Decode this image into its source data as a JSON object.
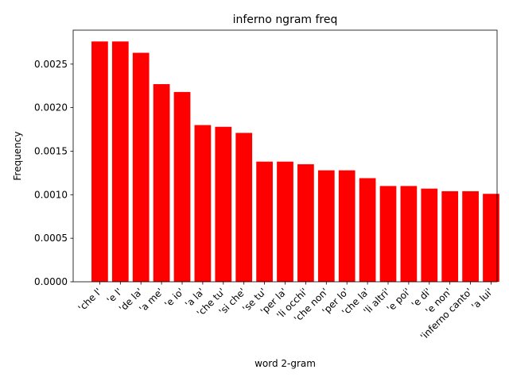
{
  "chart_data": {
    "type": "bar",
    "title": "inferno ngram freq",
    "xlabel": "word 2-gram",
    "ylabel": "Frequency",
    "ylim": [
      0,
      0.00289
    ],
    "yticks": [
      "0.0000",
      "0.0005",
      "0.0010",
      "0.0015",
      "0.0020",
      "0.0025"
    ],
    "grid": false,
    "bar_color": "#ff0000",
    "categories": [
      "'che l'",
      "'e l'",
      "'de la'",
      "'a me'",
      "'e io'",
      "'a la'",
      "'che tu'",
      "'si che'",
      "'se tu'",
      "'per la'",
      "'li occhi'",
      "'che non'",
      "'per lo'",
      "'che la'",
      "'li altri'",
      "'e poi'",
      "'e di'",
      "'e non'",
      "'inferno canto'",
      "'a lui'"
    ],
    "values": [
      0.00276,
      0.00276,
      0.00263,
      0.00227,
      0.00218,
      0.0018,
      0.00178,
      0.00171,
      0.00138,
      0.00138,
      0.00135,
      0.00128,
      0.00128,
      0.00119,
      0.0011,
      0.0011,
      0.00107,
      0.00104,
      0.00104,
      0.00101
    ]
  }
}
